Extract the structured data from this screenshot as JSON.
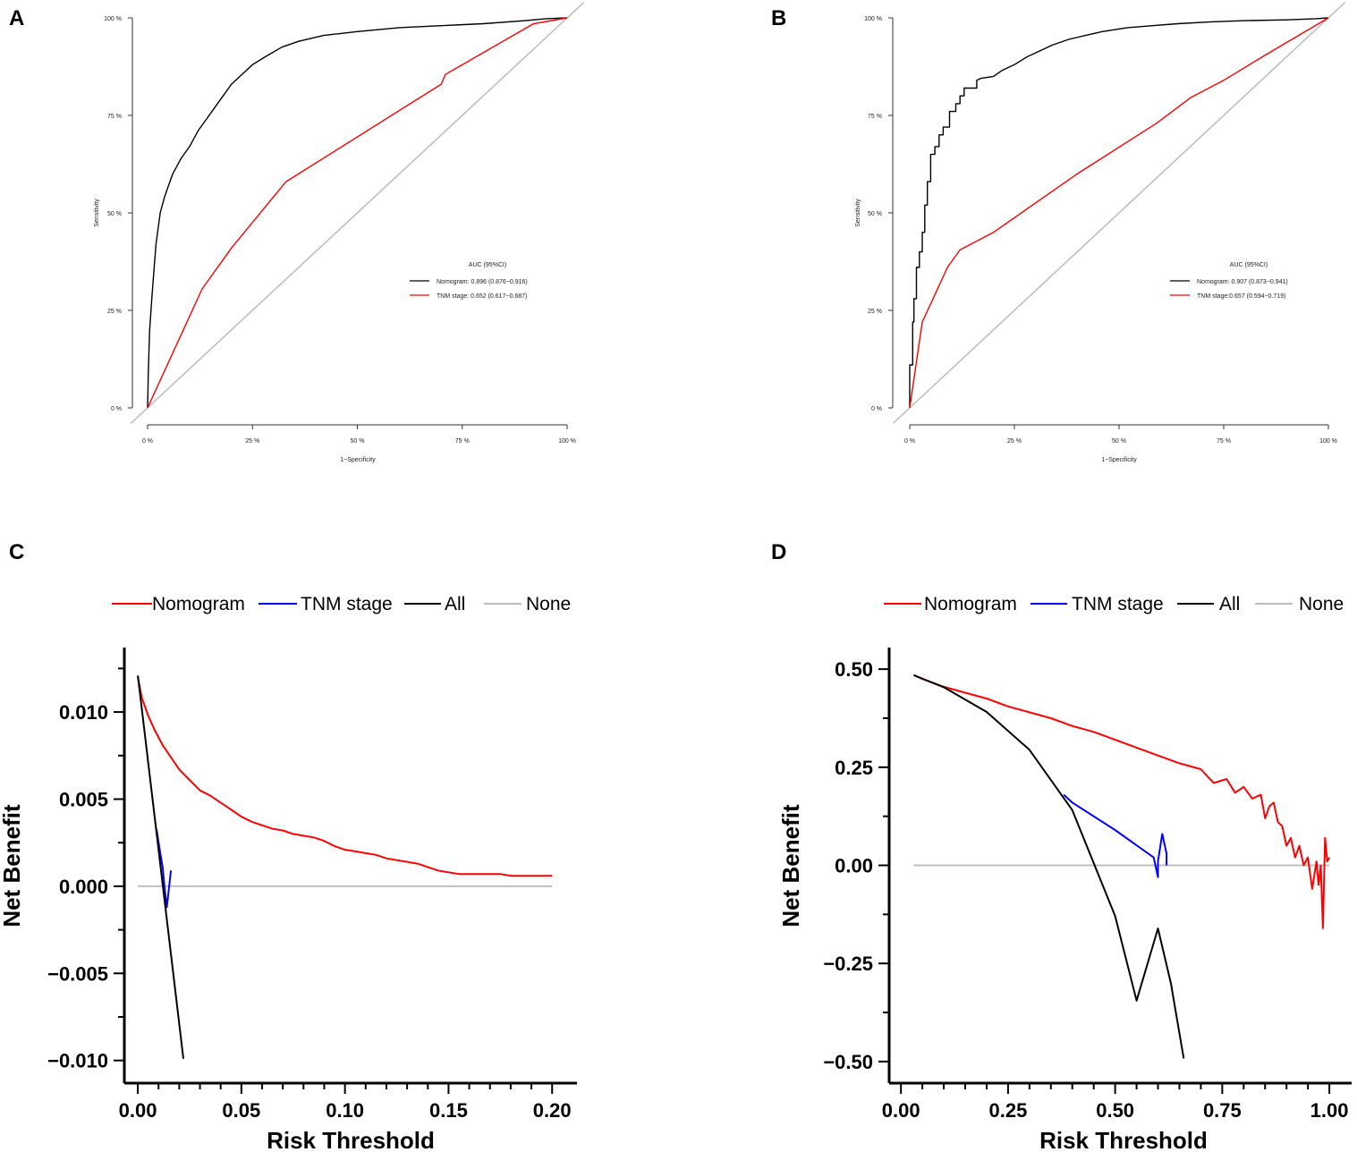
{
  "chart_data": [
    {
      "type": "line",
      "panel": "A",
      "xlabel": "1−Specificity",
      "ylabel": "Sensitivity",
      "x_ticks": [
        "0 %",
        "25 %",
        "50 %",
        "75 %",
        "100 %"
      ],
      "y_ticks": [
        "0 %",
        "25 %",
        "50 %",
        "75 %",
        "100 %"
      ],
      "xlim": [
        0,
        100
      ],
      "ylim": [
        0,
        100
      ],
      "legend_title": "AUC (95%CI)",
      "series": [
        {
          "name": "Nomogram: 0.896 (0.876−0.916)",
          "color": "#000000",
          "x": [
            0,
            0.2,
            0.5,
            1,
            1.5,
            2,
            3,
            4,
            5,
            6,
            8,
            10,
            12,
            14,
            16,
            18,
            20,
            22,
            25,
            28,
            32,
            36,
            42,
            50,
            60,
            70,
            80,
            90,
            95,
            100
          ],
          "y": [
            0,
            10,
            20,
            28,
            35,
            42,
            50,
            54,
            57,
            60,
            64,
            67,
            71,
            74,
            77,
            80,
            83,
            85,
            88,
            90,
            92.5,
            94,
            95.5,
            96.5,
            97.5,
            98,
            98.5,
            99.3,
            99.8,
            100
          ]
        },
        {
          "name": "TNM stage: 0.652 (0.617−0.687)",
          "color": "#ff0000",
          "x": [
            0,
            13,
            20,
            33,
            70,
            71,
            92,
            100
          ],
          "y": [
            0,
            30.5,
            41,
            58,
            83,
            85.5,
            98.5,
            100
          ]
        },
        {
          "name": "reference",
          "color": "#bfbfbf",
          "x": [
            -4,
            104
          ],
          "y": [
            -4,
            104
          ]
        }
      ]
    },
    {
      "type": "line",
      "panel": "B",
      "xlabel": "1−Specificity",
      "ylabel": "Sensitivity",
      "x_ticks": [
        "0 %",
        "25 %",
        "50 %",
        "75 %",
        "100 %"
      ],
      "y_ticks": [
        "0 %",
        "25 %",
        "50 %",
        "75 %",
        "100 %"
      ],
      "xlim": [
        0,
        100
      ],
      "ylim": [
        0,
        100
      ],
      "legend_title": "AUC (95%CI)",
      "series": [
        {
          "name": "Nomogram: 0.907 (0.873−0.941)",
          "color": "#000000",
          "x": [
            0,
            0,
            0.7,
            0.7,
            1,
            1,
            1.6,
            1.6,
            2.3,
            2.3,
            3,
            3,
            3.6,
            3.6,
            4.2,
            4.2,
            5,
            5,
            6,
            6,
            7,
            7,
            8,
            8,
            9.5,
            9.5,
            11,
            11,
            12,
            12,
            13,
            13,
            16,
            16,
            17,
            20,
            22,
            25,
            28,
            30,
            34,
            38,
            42,
            46,
            52,
            58,
            64,
            72,
            80,
            90,
            97,
            100
          ],
          "y": [
            0,
            11,
            11,
            22,
            22,
            28,
            28,
            36,
            36,
            40,
            40,
            45,
            45,
            52,
            52,
            58,
            58,
            65,
            65,
            67,
            67,
            70,
            70,
            72,
            72,
            76,
            76,
            78,
            78,
            80,
            80,
            82,
            82,
            84,
            84.5,
            85,
            86.5,
            88,
            90,
            91,
            93,
            94.5,
            95.5,
            96.5,
            97.5,
            98,
            98.5,
            99,
            99.3,
            99.5,
            99.8,
            100
          ]
        },
        {
          "name": "TNM stage:0.657 (0.594−0.719)",
          "color": "#ff0000",
          "x": [
            0,
            3,
            6,
            9,
            12,
            20,
            40,
            59,
            67,
            75,
            85,
            100
          ],
          "y": [
            0,
            22,
            29,
            36,
            40.5,
            45,
            60,
            73,
            79.5,
            84,
            90.5,
            100
          ]
        },
        {
          "name": "reference",
          "color": "#bfbfbf",
          "x": [
            -4,
            104
          ],
          "y": [
            -4,
            104
          ]
        }
      ]
    },
    {
      "type": "line",
      "panel": "C",
      "xlabel": "Risk Threshold",
      "ylabel": "Net Benefit",
      "x_ticks": [
        "0.00",
        "0.05",
        "0.10",
        "0.15",
        "0.20"
      ],
      "y_ticks": [
        "−0.010",
        "−0.005",
        "0.000",
        "0.005",
        "0.010"
      ],
      "xlim": [
        -0.0065,
        0.212
      ],
      "ylim": [
        -0.0113,
        0.0137
      ],
      "legend": [
        "Nomogram",
        "TNM stage",
        "All",
        "None"
      ],
      "series": [
        {
          "name": "Nomogram",
          "color": "#ff0000",
          "x": [
            0.0,
            0.002,
            0.005,
            0.008,
            0.012,
            0.016,
            0.02,
            0.025,
            0.03,
            0.035,
            0.04,
            0.045,
            0.05,
            0.055,
            0.06,
            0.065,
            0.07,
            0.075,
            0.08,
            0.085,
            0.09,
            0.095,
            0.1,
            0.105,
            0.11,
            0.115,
            0.12,
            0.125,
            0.13,
            0.135,
            0.14,
            0.145,
            0.15,
            0.155,
            0.16,
            0.165,
            0.17,
            0.175,
            0.18,
            0.185,
            0.19,
            0.195,
            0.2
          ],
          "y": [
            0.012,
            0.0108,
            0.0098,
            0.009,
            0.0081,
            0.0074,
            0.0067,
            0.0061,
            0.0055,
            0.0052,
            0.0048,
            0.0044,
            0.004,
            0.0037,
            0.0035,
            0.0033,
            0.0032,
            0.003,
            0.0029,
            0.0028,
            0.0026,
            0.0023,
            0.0021,
            0.002,
            0.0019,
            0.0018,
            0.0016,
            0.0015,
            0.0014,
            0.0013,
            0.0011,
            0.0009,
            0.0008,
            0.0007,
            0.0007,
            0.0007,
            0.0007,
            0.0007,
            0.0006,
            0.0006,
            0.0006,
            0.0006,
            0.0006
          ]
        },
        {
          "name": "TNM stage",
          "color": "#0000ff",
          "x": [
            0.009,
            0.011,
            0.012,
            0.013,
            0.014,
            0.016
          ],
          "y": [
            0.0033,
            0.0018,
            0.0011,
            -0.0002,
            -0.0012,
            0.0009
          ]
        },
        {
          "name": "All",
          "color": "#000000",
          "x": [
            0.0,
            0.022
          ],
          "y": [
            0.0121,
            -0.0099
          ]
        },
        {
          "name": "None",
          "color": "#bfbfbf",
          "x": [
            0.0,
            0.2
          ],
          "y": [
            0.0,
            0.0
          ]
        }
      ]
    },
    {
      "type": "line",
      "panel": "D",
      "xlabel": "Risk Threshold",
      "ylabel": "Net Benefit",
      "x_ticks": [
        "0.00",
        "0.25",
        "0.50",
        "0.75",
        "1.00"
      ],
      "y_ticks": [
        "−0.50",
        "−0.25",
        "0.00",
        "0.25",
        "0.50"
      ],
      "xlim": [
        -0.0275,
        1.052
      ],
      "ylim": [
        -0.555,
        0.555
      ],
      "legend": [
        "Nomogram",
        "TNM stage",
        "All",
        "None"
      ],
      "series": [
        {
          "name": "Nomogram",
          "color": "#ff0000",
          "x": [
            0.03,
            0.05,
            0.1,
            0.15,
            0.2,
            0.25,
            0.3,
            0.35,
            0.4,
            0.45,
            0.5,
            0.55,
            0.6,
            0.65,
            0.7,
            0.73,
            0.76,
            0.78,
            0.8,
            0.82,
            0.84,
            0.85,
            0.86,
            0.87,
            0.88,
            0.89,
            0.9,
            0.91,
            0.92,
            0.93,
            0.94,
            0.95,
            0.96,
            0.97,
            0.975,
            0.98,
            0.985,
            0.99,
            0.995,
            1.0
          ],
          "y": [
            0.485,
            0.475,
            0.455,
            0.44,
            0.425,
            0.405,
            0.39,
            0.375,
            0.355,
            0.34,
            0.32,
            0.3,
            0.28,
            0.26,
            0.245,
            0.21,
            0.22,
            0.185,
            0.2,
            0.17,
            0.18,
            0.12,
            0.15,
            0.16,
            0.11,
            0.1,
            0.05,
            0.07,
            0.02,
            0.05,
            0.0,
            0.02,
            -0.06,
            0.01,
            -0.05,
            0.0,
            -0.16,
            0.07,
            0.01,
            0.02
          ]
        },
        {
          "name": "TNM stage",
          "color": "#0000ff",
          "x": [
            0.38,
            0.4,
            0.5,
            0.59,
            0.6,
            0.6,
            0.61,
            0.62,
            0.62
          ],
          "y": [
            0.18,
            0.16,
            0.09,
            0.02,
            -0.03,
            0.01,
            0.08,
            0.03,
            0.0
          ]
        },
        {
          "name": "All",
          "color": "#000000",
          "x": [
            0.03,
            0.1,
            0.2,
            0.3,
            0.4,
            0.5,
            0.55,
            0.6,
            0.63,
            0.66
          ],
          "y": [
            0.4845,
            0.4539,
            0.3909,
            0.2944,
            0.1408,
            -0.129,
            -0.3448,
            -0.161,
            -0.3,
            -0.492
          ]
        },
        {
          "name": "None",
          "color": "#bfbfbf",
          "x": [
            0.03,
            1.0
          ],
          "y": [
            0.0,
            0.0
          ]
        }
      ]
    }
  ]
}
